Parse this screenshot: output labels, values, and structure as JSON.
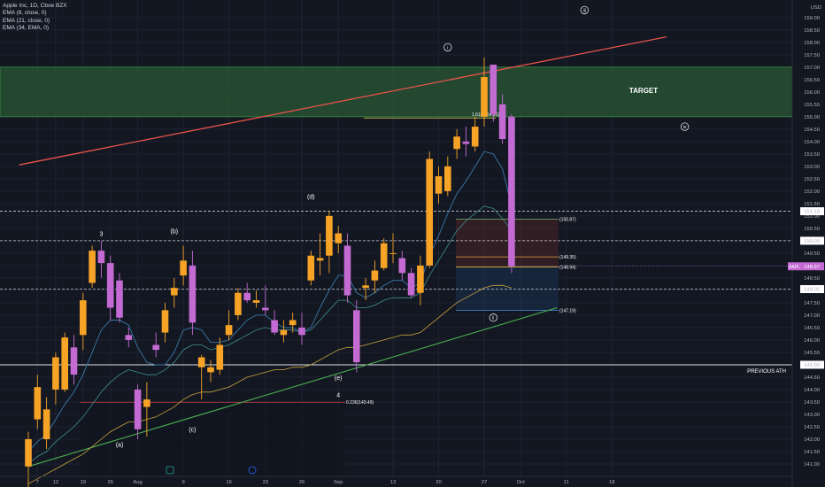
{
  "legend": {
    "symbol": "Apple Inc, 1D, Cboe BZX",
    "ema8": "EMA (8, close, 0)",
    "ema21": "EMA (21, close, 0)",
    "ema34": "EMA (34, EMA, 0)"
  },
  "colors": {
    "background": "#131722",
    "up": "#f7a326",
    "down": "#c46bd3",
    "ema8": "#3a78a6",
    "ema21": "#3f8f8f",
    "ema34": "#c7a53d",
    "resistance": "#e8534a",
    "support": "#4caf50",
    "target_zone": "#2a5a34",
    "price_badge": "#c46bd3"
  },
  "chart_data": {
    "type": "candlestick",
    "symbol": "AAPL",
    "timeframe": "1D",
    "currency": "USD",
    "ylim": [
      140.5,
      159.6
    ],
    "y_ticks": [
      141.0,
      141.5,
      142.0,
      142.5,
      143.0,
      143.5,
      144.0,
      144.5,
      145.0,
      145.5,
      146.0,
      146.5,
      147.0,
      147.5,
      148.0,
      148.5,
      149.0,
      149.5,
      150.0,
      150.5,
      151.0,
      151.5,
      152.0,
      152.5,
      153.0,
      153.5,
      154.0,
      154.5,
      155.0,
      155.5,
      156.0,
      156.5,
      157.0,
      157.5,
      158.0,
      158.5,
      159.0
    ],
    "x_ticks": [
      "7",
      "12",
      "19",
      "26",
      "Aug",
      "9",
      "16",
      "23",
      "26",
      "Sep",
      "13",
      "20",
      "27",
      "Oct",
      "11",
      "18"
    ],
    "x_tick_index": [
      1,
      3,
      6,
      9,
      12,
      17,
      22,
      26,
      30,
      34,
      40,
      45,
      50,
      54,
      59,
      64
    ],
    "candles": [
      {
        "o": 140.9,
        "h": 142.3,
        "l": 140.0,
        "c": 142.0
      },
      {
        "o": 142.8,
        "h": 144.6,
        "l": 142.4,
        "c": 144.1
      },
      {
        "o": 142.0,
        "h": 143.7,
        "l": 141.6,
        "c": 143.2
      },
      {
        "o": 144.0,
        "h": 145.5,
        "l": 143.4,
        "c": 145.3
      },
      {
        "o": 144.0,
        "h": 146.3,
        "l": 143.9,
        "c": 146.1
      },
      {
        "o": 145.7,
        "h": 146.2,
        "l": 144.2,
        "c": 144.6
      },
      {
        "o": 146.2,
        "h": 147.9,
        "l": 145.6,
        "c": 147.6
      },
      {
        "o": 148.3,
        "h": 149.8,
        "l": 148.1,
        "c": 149.6
      },
      {
        "o": 149.6,
        "h": 150.0,
        "l": 148.5,
        "c": 149.1
      },
      {
        "o": 149.1,
        "h": 149.4,
        "l": 146.8,
        "c": 147.3
      },
      {
        "o": 148.4,
        "h": 148.7,
        "l": 146.7,
        "c": 146.9
      },
      {
        "o": 146.2,
        "h": 146.5,
        "l": 145.7,
        "c": 146.0
      },
      {
        "o": 144.0,
        "h": 144.2,
        "l": 142.0,
        "c": 142.4
      },
      {
        "o": 143.3,
        "h": 144.3,
        "l": 142.1,
        "c": 143.6
      },
      {
        "o": 145.8,
        "h": 146.3,
        "l": 145.3,
        "c": 145.6
      },
      {
        "o": 146.3,
        "h": 147.5,
        "l": 145.9,
        "c": 147.2
      },
      {
        "o": 147.8,
        "h": 148.5,
        "l": 147.3,
        "c": 148.1
      },
      {
        "o": 148.6,
        "h": 149.8,
        "l": 148.2,
        "c": 149.2
      },
      {
        "o": 149.0,
        "h": 149.6,
        "l": 146.2,
        "c": 146.7
      },
      {
        "o": 144.9,
        "h": 145.4,
        "l": 143.6,
        "c": 145.3
      },
      {
        "o": 144.7,
        "h": 145.2,
        "l": 144.3,
        "c": 144.9
      },
      {
        "o": 144.8,
        "h": 146.1,
        "l": 144.6,
        "c": 145.8
      },
      {
        "o": 146.2,
        "h": 147.2,
        "l": 146.0,
        "c": 146.6
      },
      {
        "o": 147.0,
        "h": 148.1,
        "l": 146.8,
        "c": 147.9
      },
      {
        "o": 147.9,
        "h": 148.3,
        "l": 147.5,
        "c": 147.6
      },
      {
        "o": 147.5,
        "h": 148.0,
        "l": 147.3,
        "c": 147.6
      },
      {
        "o": 147.3,
        "h": 148.2,
        "l": 147.0,
        "c": 147.2
      },
      {
        "o": 146.8,
        "h": 147.2,
        "l": 146.2,
        "c": 146.3
      },
      {
        "o": 146.2,
        "h": 146.8,
        "l": 145.9,
        "c": 146.4
      },
      {
        "o": 146.6,
        "h": 147.1,
        "l": 146.3,
        "c": 146.8
      },
      {
        "o": 146.5,
        "h": 147.1,
        "l": 145.8,
        "c": 146.2
      },
      {
        "o": 148.4,
        "h": 149.6,
        "l": 148.2,
        "c": 149.4
      },
      {
        "o": 149.2,
        "h": 150.3,
        "l": 148.6,
        "c": 149.3
      },
      {
        "o": 149.4,
        "h": 151.2,
        "l": 148.7,
        "c": 151.0
      },
      {
        "o": 149.9,
        "h": 150.6,
        "l": 149.5,
        "c": 150.3
      },
      {
        "o": 149.8,
        "h": 150.3,
        "l": 147.5,
        "c": 147.8
      },
      {
        "o": 147.2,
        "h": 147.6,
        "l": 144.7,
        "c": 145.1
      },
      {
        "o": 148.1,
        "h": 148.5,
        "l": 147.6,
        "c": 148.2
      },
      {
        "o": 148.4,
        "h": 149.2,
        "l": 147.9,
        "c": 148.8
      },
      {
        "o": 148.9,
        "h": 150.1,
        "l": 148.8,
        "c": 149.9
      },
      {
        "o": 149.5,
        "h": 150.3,
        "l": 149.1,
        "c": 149.5
      },
      {
        "o": 149.3,
        "h": 149.6,
        "l": 148.4,
        "c": 148.7
      },
      {
        "o": 148.7,
        "h": 148.9,
        "l": 147.7,
        "c": 147.8
      },
      {
        "o": 147.9,
        "h": 149.4,
        "l": 147.4,
        "c": 149.0
      },
      {
        "o": 149.0,
        "h": 153.6,
        "l": 148.9,
        "c": 153.3
      },
      {
        "o": 151.9,
        "h": 153.0,
        "l": 151.5,
        "c": 152.6
      },
      {
        "o": 152.0,
        "h": 153.4,
        "l": 151.8,
        "c": 153.0
      },
      {
        "o": 153.7,
        "h": 154.5,
        "l": 153.3,
        "c": 154.2
      },
      {
        "o": 154.0,
        "h": 154.6,
        "l": 153.4,
        "c": 153.9
      },
      {
        "o": 153.8,
        "h": 155.0,
        "l": 153.6,
        "c": 154.6
      },
      {
        "o": 155.0,
        "h": 157.4,
        "l": 154.6,
        "c": 156.6
      },
      {
        "o": 157.1,
        "h": 157.1,
        "l": 154.8,
        "c": 155.1
      },
      {
        "o": 155.5,
        "h": 155.9,
        "l": 153.9,
        "c": 154.1
      },
      {
        "o": 155.0,
        "h": 155.1,
        "l": 148.7,
        "c": 148.97
      }
    ],
    "ema8_approx": [
      141.5,
      141.9,
      142.2,
      142.8,
      143.4,
      143.9,
      144.6,
      145.5,
      146.4,
      146.8,
      146.8,
      146.6,
      145.7,
      145.1,
      145.0,
      145.0,
      145.5,
      146.4,
      146.5,
      146.4,
      145.9,
      145.9,
      146.0,
      146.4,
      146.8,
      147.0,
      147.0,
      146.7,
      146.5,
      146.5,
      146.3,
      146.5,
      147.3,
      148.0,
      148.6,
      148.6,
      147.9,
      147.7,
      147.9,
      148.2,
      148.4,
      148.4,
      148.1,
      148.3,
      149.4,
      150.2,
      151.1,
      151.9,
      152.4,
      153.0,
      153.6,
      153.5,
      152.9,
      151.4
    ],
    "ema21_approx": [
      141.0,
      141.3,
      141.5,
      141.9,
      142.2,
      142.5,
      142.9,
      143.4,
      143.9,
      144.3,
      144.6,
      144.8,
      144.7,
      144.6,
      144.6,
      144.8,
      145.1,
      145.6,
      145.8,
      145.8,
      145.6,
      145.7,
      145.8,
      146.0,
      146.2,
      146.4,
      146.5,
      146.4,
      146.4,
      146.4,
      146.3,
      146.4,
      146.8,
      147.2,
      147.6,
      147.6,
      147.3,
      147.3,
      147.4,
      147.6,
      147.7,
      147.7,
      147.7,
      147.9,
      148.6,
      149.2,
      149.8,
      150.4,
      150.8,
      151.1,
      151.4,
      151.3,
      150.9,
      150.4
    ],
    "ema34_approx": [
      140.2,
      140.4,
      140.6,
      140.8,
      141.0,
      141.2,
      141.4,
      141.7,
      142.0,
      142.3,
      142.5,
      142.7,
      142.7,
      142.8,
      142.9,
      143.1,
      143.3,
      143.6,
      143.8,
      143.9,
      143.9,
      144.0,
      144.1,
      144.3,
      144.5,
      144.6,
      144.7,
      144.8,
      144.8,
      144.9,
      144.9,
      145.0,
      145.2,
      145.4,
      145.6,
      145.7,
      145.7,
      145.8,
      145.9,
      146.0,
      146.1,
      146.2,
      146.2,
      146.3,
      146.6,
      146.9,
      147.2,
      147.5,
      147.7,
      147.9,
      148.1,
      148.2,
      148.2,
      148.1
    ],
    "resistance_line": {
      "from": {
        "i": -1,
        "y": 153.06
      },
      "to": {
        "i": 70,
        "y": 158.22
      }
    },
    "support_line": {
      "from": {
        "i": 0,
        "y": 140.9
      },
      "to": {
        "i": 58,
        "y": 147.3
      }
    },
    "target_zone": {
      "from": 155.0,
      "to": 157.0,
      "label": "TARGET"
    },
    "fib_lines": [
      {
        "price": 154.95,
        "label": "1.618(154.95)",
        "color": "#e6d84a"
      },
      {
        "price": 150.87,
        "label": "(150.87)",
        "color": "#7fb86b"
      },
      {
        "price": 149.35,
        "label": "(149.35)",
        "color": "#e8a33a"
      },
      {
        "price": 148.94,
        "label": "(148.94)",
        "color": "#f5d34a"
      },
      {
        "price": 147.19,
        "label": "(147.19)",
        "color": "#4a8bd6"
      },
      {
        "price": 143.49,
        "label": "0.236(143.49)",
        "color": "#d04848"
      }
    ],
    "horizontal_levels": [
      {
        "price": 151.19,
        "label": "151.19"
      },
      {
        "price": 150.0,
        "label": "150.00"
      },
      {
        "price": 148.05,
        "label": "148.05"
      },
      {
        "price": 145.0,
        "label": "145.00",
        "note": "PREVIOUS ATH"
      }
    ],
    "current_price": {
      "label": "AAPL",
      "value": "148.97",
      "price": 148.97
    },
    "wave_labels": [
      {
        "text": "3",
        "i": 8,
        "price": 150.2
      },
      {
        "text": "(a)",
        "i": 10,
        "price": 141.7
      },
      {
        "text": "(b)",
        "i": 16,
        "price": 150.3
      },
      {
        "text": "(c)",
        "i": 18,
        "price": 142.3
      },
      {
        "text": "(d)",
        "i": 31,
        "price": 151.7
      },
      {
        "text": "(e)",
        "i": 34,
        "price": 144.4
      },
      {
        "text": "4",
        "i": 34,
        "price": 143.7
      },
      {
        "text": "i",
        "i": 46,
        "price": 157.8,
        "circled": true
      },
      {
        "text": "ii",
        "i": 51,
        "price": 146.9,
        "circled": true
      },
      {
        "text": "iii",
        "i": 61,
        "price": 159.3,
        "circled": true
      },
      {
        "text": "iv",
        "i": 72,
        "price": 154.6,
        "circled": true
      }
    ],
    "target_label": "TARGET",
    "previous_ath_label": "PREVIOUS ATH"
  }
}
